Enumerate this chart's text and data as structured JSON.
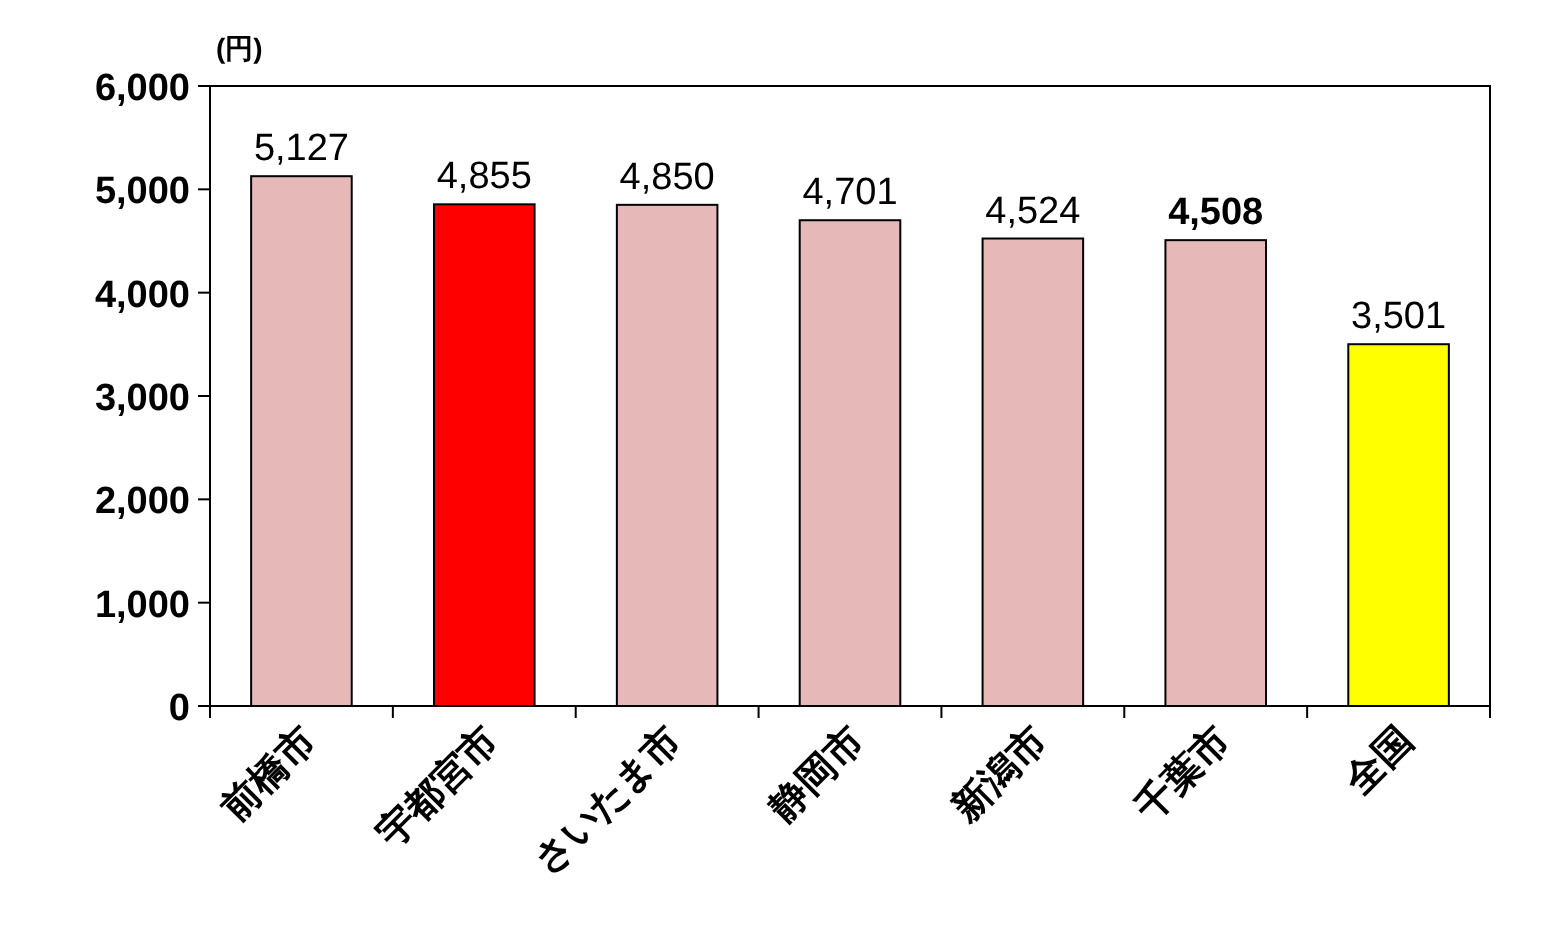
{
  "chart_data": {
    "type": "bar",
    "ylabel": "(円)",
    "categories": [
      "前橋市",
      "宇都宮市",
      "さいたま市",
      "静岡市",
      "新潟市",
      "千葉市",
      "全国"
    ],
    "values": [
      5127,
      4855,
      4850,
      4701,
      4524,
      4508,
      3501
    ],
    "colors": [
      "#e6b9b8",
      "#ff0000",
      "#e6b9b8",
      "#e6b9b8",
      "#e6b9b8",
      "#e6b9b8",
      "#ffff00"
    ],
    "ylim": [
      0,
      6000
    ],
    "yticks": [
      {
        "value": 0,
        "label": "0"
      },
      {
        "value": 1000,
        "label": "1,000"
      },
      {
        "value": 2000,
        "label": "2,000"
      },
      {
        "value": 3000,
        "label": "3,000"
      },
      {
        "value": 4000,
        "label": "4,000"
      },
      {
        "value": 5000,
        "label": "5,000"
      },
      {
        "value": 6000,
        "label": "6,000"
      }
    ],
    "value_labels": [
      "5,127",
      "4,855",
      "4,850",
      "4,701",
      "4,524",
      "**4,508**",
      "3,501"
    ]
  }
}
